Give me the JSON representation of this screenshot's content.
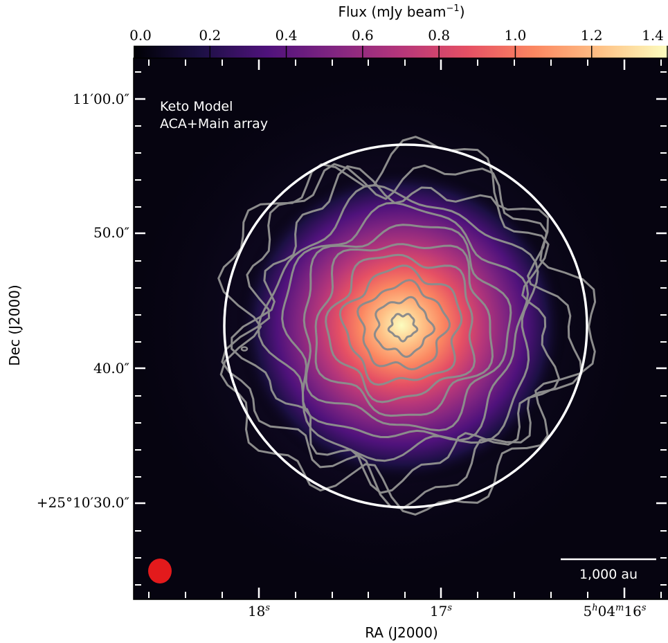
{
  "chart_data": {
    "type": "heatmap",
    "title": "",
    "colorbar": {
      "label_main": "Flux (mJy beam",
      "label_exp": "−1",
      "label_close": ")",
      "range": [
        0.0,
        1.4
      ],
      "tick_values": [
        0.0,
        0.2,
        0.4,
        0.6,
        0.8,
        1.0,
        1.2,
        1.4
      ],
      "tick_labels": [
        "0.0",
        "0.2",
        "0.4",
        "0.6",
        "0.8",
        "1.0",
        "1.2",
        "1.4"
      ],
      "colormap": "magma",
      "colors": [
        "#000004",
        "#1c1044",
        "#4f127b",
        "#812581",
        "#b5367a",
        "#e55064",
        "#fb8761",
        "#fec287",
        "#fcfdbf"
      ]
    },
    "xlabel": "RA (J2000)",
    "ylabel": "Dec (J2000)",
    "x_tick_labels": [
      {
        "base": "18",
        "sup": "s"
      },
      {
        "base": "17",
        "sup": "s"
      },
      {
        "base": "5",
        "sup": "h",
        "base2": "04",
        "sup2": "m",
        "base3": "16",
        "sup3": "s"
      }
    ],
    "y_tick_labels": [
      "11′00.0″",
      "50.0″",
      "40.0″",
      "+25°10′30.0″"
    ],
    "annotation_lines": [
      "Keto Model",
      "ACA+Main array"
    ],
    "scale_bar_label": "1,000 au",
    "beam_color": "#e31a1c",
    "circle_color": "#ffffff",
    "contour_color": "#8c8c8c",
    "peak_flux": 1.4,
    "contour_count": 12,
    "grid": false
  }
}
